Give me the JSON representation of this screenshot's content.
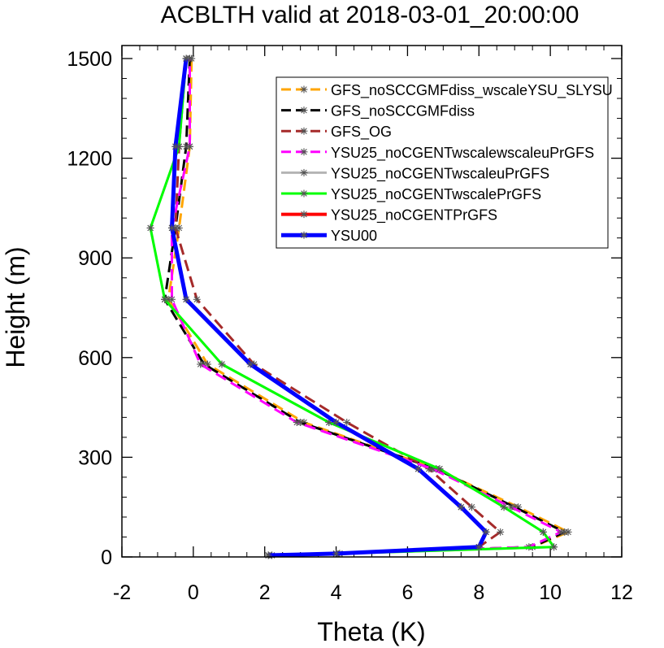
{
  "chart_data": {
    "type": "line",
    "title": "ACBLTH valid at 2018-03-01_20:00:00",
    "xlabel": "Theta (K)",
    "ylabel": "Height (m)",
    "xlim": [
      -2,
      12
    ],
    "ylim": [
      0,
      1500
    ],
    "xticks": [
      -2,
      0,
      2,
      4,
      6,
      8,
      10,
      12
    ],
    "yticks": [
      0,
      300,
      600,
      900,
      1200,
      1500
    ],
    "xtick_labels": [
      "-2",
      "0",
      "2",
      "4",
      "6",
      "8",
      "10",
      "12"
    ],
    "ytick_labels": [
      "0",
      "300",
      "600",
      "900",
      "1200",
      "1500"
    ],
    "grid": false,
    "legend_position": "top-right",
    "series": [
      {
        "name": "GFS_noSCCGMFdiss_wscaleYSU_SLYSU",
        "color": "#ffa500",
        "dash": "dash",
        "width": 3,
        "x": [
          2.1,
          4.1,
          9.5,
          10.5,
          9.1,
          6.8,
          3.1,
          0.4,
          -0.7,
          -0.4,
          -0.1,
          -0.05
        ],
        "y": [
          5,
          10,
          30,
          75,
          150,
          265,
          405,
          580,
          775,
          990,
          1235,
          1500
        ]
      },
      {
        "name": "GFS_noSCCGMFdiss",
        "color": "#000000",
        "dash": "dash",
        "width": 3,
        "x": [
          2.1,
          4.0,
          9.5,
          10.4,
          9.0,
          6.8,
          3.0,
          0.3,
          -0.8,
          -0.5,
          -0.2,
          -0.1
        ],
        "y": [
          5,
          10,
          30,
          75,
          150,
          265,
          405,
          580,
          775,
          990,
          1235,
          1500
        ]
      },
      {
        "name": "GFS_OG",
        "color": "#a52a2a",
        "dash": "dash",
        "width": 3,
        "x": [
          2.2,
          4.0,
          8.0,
          8.6,
          7.8,
          6.6,
          4.3,
          1.7,
          0.1,
          -0.5,
          -0.4,
          -0.2
        ],
        "y": [
          5,
          10,
          30,
          75,
          150,
          265,
          405,
          580,
          775,
          990,
          1235,
          1500
        ]
      },
      {
        "name": "YSU25_noCGENTwscalewscaleuPrGFS",
        "color": "#ff00ff",
        "dash": "dash",
        "width": 3,
        "x": [
          2.1,
          4.0,
          9.4,
          10.3,
          8.9,
          6.7,
          2.9,
          0.2,
          -0.6,
          -0.6,
          -0.1,
          -0.1
        ],
        "y": [
          5,
          10,
          30,
          75,
          150,
          265,
          405,
          580,
          775,
          990,
          1235,
          1500
        ]
      },
      {
        "name": "YSU25_noCGENTwscaleuPrGFS",
        "color": "#b4b4b4",
        "dash": "solid",
        "width": 3,
        "x": [
          2.2,
          4.1,
          10.1,
          9.8,
          8.7,
          6.9,
          3.8,
          0.8,
          -0.8,
          -1.2,
          -0.4,
          -0.2
        ],
        "y": [
          5,
          10,
          30,
          75,
          150,
          265,
          405,
          580,
          775,
          990,
          1235,
          1500
        ]
      },
      {
        "name": "YSU25_noCGENTwscalePrGFS",
        "color": "#00ff00",
        "dash": "solid",
        "width": 3,
        "x": [
          2.2,
          4.1,
          10.1,
          9.8,
          8.7,
          6.9,
          3.8,
          0.8,
          -0.8,
          -1.2,
          -0.4,
          -0.2
        ],
        "y": [
          5,
          10,
          30,
          75,
          150,
          265,
          405,
          580,
          775,
          990,
          1235,
          1500
        ]
      },
      {
        "name": "YSU25_noCGENTPrGFS",
        "color": "#ff0000",
        "dash": "solid",
        "width": 4,
        "x": [
          2.1,
          4.0,
          8.0,
          8.2,
          7.5,
          6.3,
          4.0,
          1.6,
          -0.2,
          -0.6,
          -0.5,
          -0.2
        ],
        "y": [
          5,
          10,
          30,
          75,
          150,
          265,
          405,
          580,
          775,
          990,
          1235,
          1500
        ]
      },
      {
        "name": "YSU00",
        "color": "#0000ff",
        "dash": "solid",
        "width": 5,
        "x": [
          2.1,
          4.0,
          8.0,
          8.2,
          7.5,
          6.3,
          4.0,
          1.6,
          -0.2,
          -0.6,
          -0.5,
          -0.2
        ],
        "y": [
          5,
          10,
          30,
          75,
          150,
          265,
          405,
          580,
          775,
          990,
          1235,
          1500
        ]
      }
    ]
  }
}
